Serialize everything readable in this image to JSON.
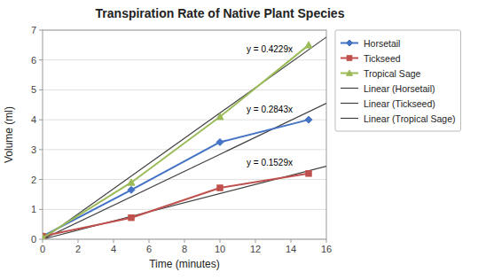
{
  "chart_data": {
    "type": "line",
    "title": "Transpiration Rate of Native Plant Species",
    "x_label": "Time (minutes)",
    "y_label": "Volume (ml)",
    "xlim": [
      0,
      16
    ],
    "ylim": [
      0,
      7
    ],
    "xticks": [
      0,
      2,
      4,
      6,
      8,
      10,
      12,
      14,
      16
    ],
    "yticks": [
      0,
      1,
      2,
      3,
      4,
      5,
      6,
      7
    ],
    "grid": "y",
    "legend": "right",
    "series": [
      {
        "name": "Horsetail",
        "color": "#4472C4",
        "marker": "diamond",
        "line_style": "solid",
        "x": [
          0,
          5,
          10,
          15
        ],
        "values": [
          0.1,
          1.65,
          3.25,
          4.0
        ]
      },
      {
        "name": "Tickseed",
        "color": "#C0504D",
        "marker": "square",
        "line_style": "solid",
        "x": [
          0,
          5,
          10,
          15
        ],
        "values": [
          0.1,
          0.72,
          1.72,
          2.2
        ]
      },
      {
        "name": "Tropical Sage",
        "color": "#9BBB59",
        "marker": "triangle",
        "line_style": "solid",
        "x": [
          0,
          5,
          10,
          15
        ],
        "values": [
          0.05,
          1.9,
          4.1,
          6.5
        ]
      },
      {
        "name": "Linear (Horsetail)",
        "color": "#404040",
        "marker": "none",
        "line_style": "solid",
        "x": [
          0,
          16
        ],
        "values": [
          0,
          4.5488
        ]
      },
      {
        "name": "Linear (Tickseed)",
        "color": "#404040",
        "marker": "none",
        "line_style": "solid",
        "x": [
          0,
          16
        ],
        "values": [
          0,
          2.4464
        ]
      },
      {
        "name": "Linear (Tropical Sage)",
        "color": "#404040",
        "marker": "none",
        "line_style": "solid",
        "x": [
          0,
          16
        ],
        "values": [
          0,
          6.7664
        ]
      }
    ],
    "annotations": [
      {
        "text": "y = 0.4229x",
        "x": 11.5,
        "y": 6.55
      },
      {
        "text": "y = 0.2843x",
        "x": 11.5,
        "y": 4.55
      },
      {
        "text": "y = 0.1529x",
        "x": 11.5,
        "y": 2.75
      }
    ]
  }
}
